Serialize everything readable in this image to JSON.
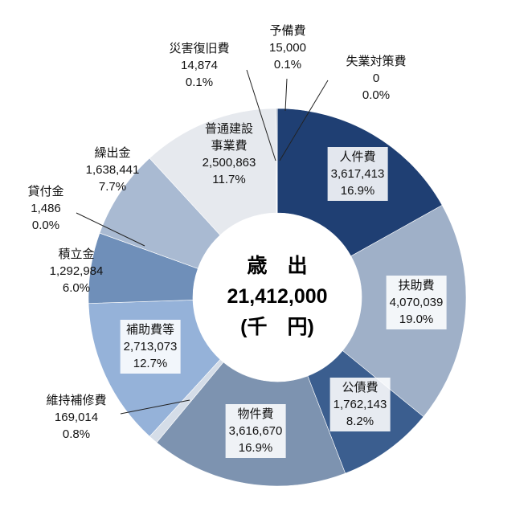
{
  "chart_data": {
    "type": "donut",
    "categories": [
      "人件費",
      "扶助費",
      "公債費",
      "物件費",
      "維持補修費",
      "補助費等",
      "積立金",
      "貸付金",
      "繰出金",
      "普通建設事業費",
      "災害復旧費",
      "予備費",
      "失業対策費"
    ],
    "values": [
      3617413,
      4070039,
      1762143,
      3616670,
      169014,
      2713073,
      1292984,
      1486,
      1638441,
      2500863,
      14874,
      15000,
      0
    ],
    "value_labels": [
      "3,617,413",
      "4,070,039",
      "1,762,143",
      "3,616,670",
      "169,014",
      "2,713,073",
      "1,292,984",
      "1,486",
      "1,638,441",
      "2,500,863",
      "14,874",
      "15,000",
      "0"
    ],
    "percents": [
      16.9,
      19.0,
      8.2,
      16.9,
      0.8,
      12.7,
      6.0,
      0.0,
      7.7,
      11.7,
      0.1,
      0.1,
      0.0
    ],
    "percent_labels": [
      "16.9%",
      "19.0%",
      "8.2%",
      "16.9%",
      "0.8%",
      "12.7%",
      "6.0%",
      "0.0%",
      "7.7%",
      "11.7%",
      "0.1%",
      "0.1%",
      "0.0%"
    ],
    "colors": [
      "#1f3f73",
      "#9fb0c8",
      "#3b5e8f",
      "#7d93b0",
      "#d5dde8",
      "#95b2d9",
      "#6f8fb9",
      "#8aa4c4",
      "#a9bad2",
      "#e6e9ee",
      "#7f8fa8",
      "#5a6f8e",
      "#2b4a78"
    ],
    "center_title": "歳　出",
    "total": 21412000,
    "total_label": "21,412,000",
    "unit": "(千　円)"
  }
}
